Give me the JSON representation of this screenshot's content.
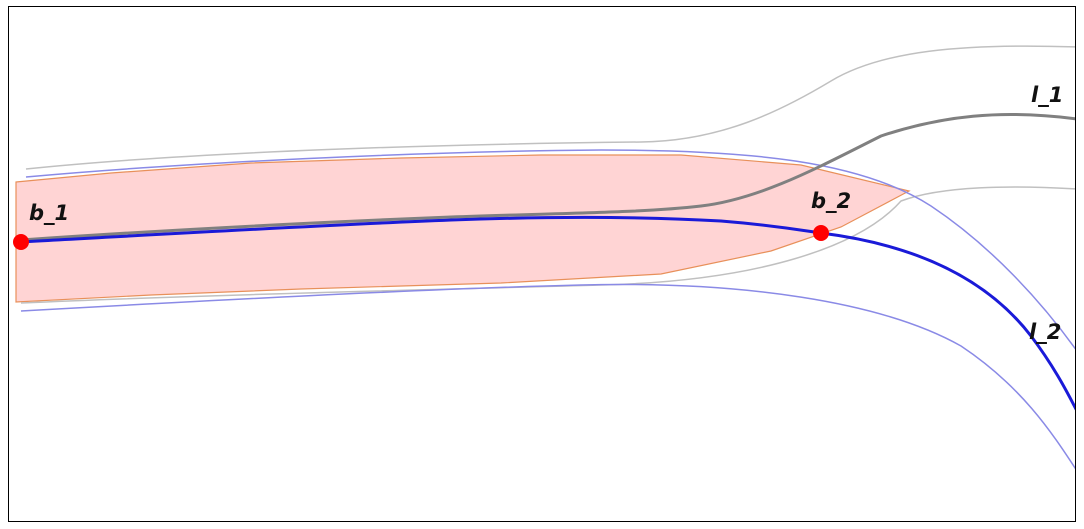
{
  "labels": {
    "l1": "l_1",
    "l2": "l_2",
    "b1": "b_1",
    "b2": "b_2"
  },
  "colors": {
    "buffer_fill": "#ffd4d4",
    "buffer_stroke": "#e8905a",
    "road_l1": "#808080",
    "road_l1_edge": "#c0c0c0",
    "road_l2": "#1a1ad8",
    "road_l2_edge": "#8a8ae6",
    "point": "#ff0000"
  }
}
